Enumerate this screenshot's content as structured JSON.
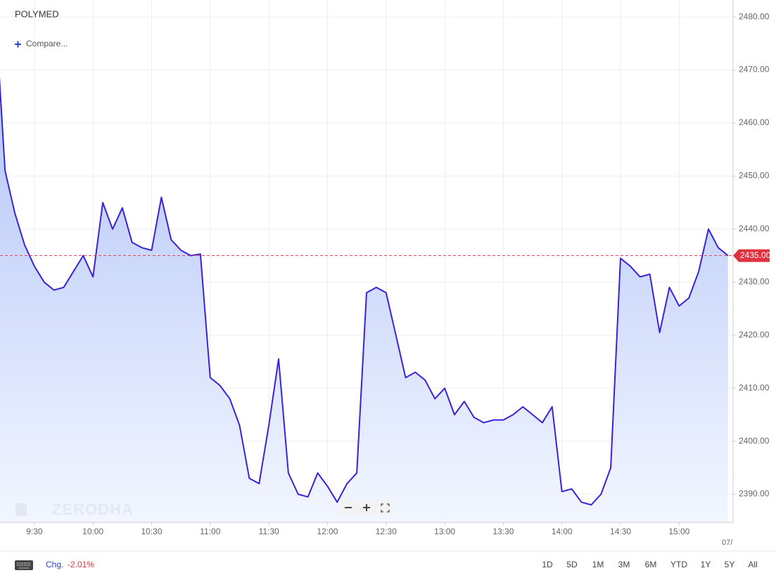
{
  "chart_data": {
    "type": "area",
    "title": "POLYMED",
    "compare_label": "Compare...",
    "watermark": "ZERODHA",
    "x_edge_label": "07/",
    "change_label": "Chg.",
    "change_value": "-2.01%",
    "ranges": [
      "1D",
      "5D",
      "1M",
      "3M",
      "6M",
      "YTD",
      "1Y",
      "5Y",
      "All"
    ],
    "last_price": {
      "value": 2435,
      "label": "2435.00"
    },
    "x": [
      552,
      555,
      560,
      565,
      570,
      575,
      580,
      585,
      590,
      595,
      600,
      605,
      610,
      615,
      620,
      625,
      630,
      635,
      640,
      645,
      650,
      655,
      660,
      665,
      670,
      675,
      680,
      685,
      690,
      695,
      700,
      705,
      710,
      715,
      720,
      725,
      730,
      735,
      740,
      745,
      750,
      755,
      760,
      765,
      770,
      775,
      780,
      785,
      790,
      795,
      800,
      805,
      810,
      815,
      820,
      825,
      830,
      835,
      840,
      845,
      850,
      855,
      860,
      865,
      870,
      875,
      880,
      885,
      890,
      895,
      900,
      905,
      910,
      915,
      920,
      925
    ],
    "series": [
      {
        "name": "POLYMED",
        "color": "#3b22d6",
        "values": [
          2469,
          2451,
          2443,
          2437,
          2433,
          2430,
          2428.5,
          2429,
          2432,
          2435,
          2431,
          2445,
          2440,
          2444,
          2437.5,
          2436.5,
          2436,
          2446,
          2438,
          2436,
          2435,
          2435.3,
          2412,
          2410.5,
          2408,
          2403,
          2393,
          2392,
          2403,
          2415.5,
          2394,
          2390,
          2389.5,
          2394,
          2391.5,
          2388.5,
          2392,
          2394,
          2428,
          2429,
          2428,
          2420,
          2412,
          2413,
          2411.5,
          2408,
          2410,
          2405,
          2407.5,
          2404.5,
          2403.5,
          2404,
          2404,
          2405,
          2406.5,
          2405,
          2403.5,
          2406.5,
          2390.5,
          2391,
          2388.5,
          2388,
          2390,
          2395,
          2434.5,
          2433,
          2431,
          2431.5,
          2420.5,
          2429,
          2425.5,
          2427,
          2432,
          2440,
          2436.5,
          2435
        ]
      }
    ],
    "xlim": [
      552.4,
      927.6
    ],
    "xticks": [
      {
        "value": 570,
        "label": "9:30"
      },
      {
        "value": 600,
        "label": "10:00"
      },
      {
        "value": 630,
        "label": "10:30"
      },
      {
        "value": 660,
        "label": "11:00"
      },
      {
        "value": 690,
        "label": "11:30"
      },
      {
        "value": 720,
        "label": "12:00"
      },
      {
        "value": 750,
        "label": "12:30"
      },
      {
        "value": 780,
        "label": "13:00"
      },
      {
        "value": 810,
        "label": "13:30"
      },
      {
        "value": 840,
        "label": "14:00"
      },
      {
        "value": 870,
        "label": "14:30"
      },
      {
        "value": 900,
        "label": "15:00"
      }
    ],
    "ylim": [
      2384.7,
      2483.2
    ],
    "yticks": [
      {
        "value": 2390,
        "label": "2390.00"
      },
      {
        "value": 2400,
        "label": "2400.00"
      },
      {
        "value": 2410,
        "label": "2410.00"
      },
      {
        "value": 2420,
        "label": "2420.00"
      },
      {
        "value": 2430,
        "label": "2430.00"
      },
      {
        "value": 2440,
        "label": "2440.00"
      },
      {
        "value": 2450,
        "label": "2450.00"
      },
      {
        "value": 2460,
        "label": "2460.00"
      },
      {
        "value": 2470,
        "label": "2470.00"
      },
      {
        "value": 2480,
        "label": "2480.00"
      }
    ],
    "grid": true
  }
}
